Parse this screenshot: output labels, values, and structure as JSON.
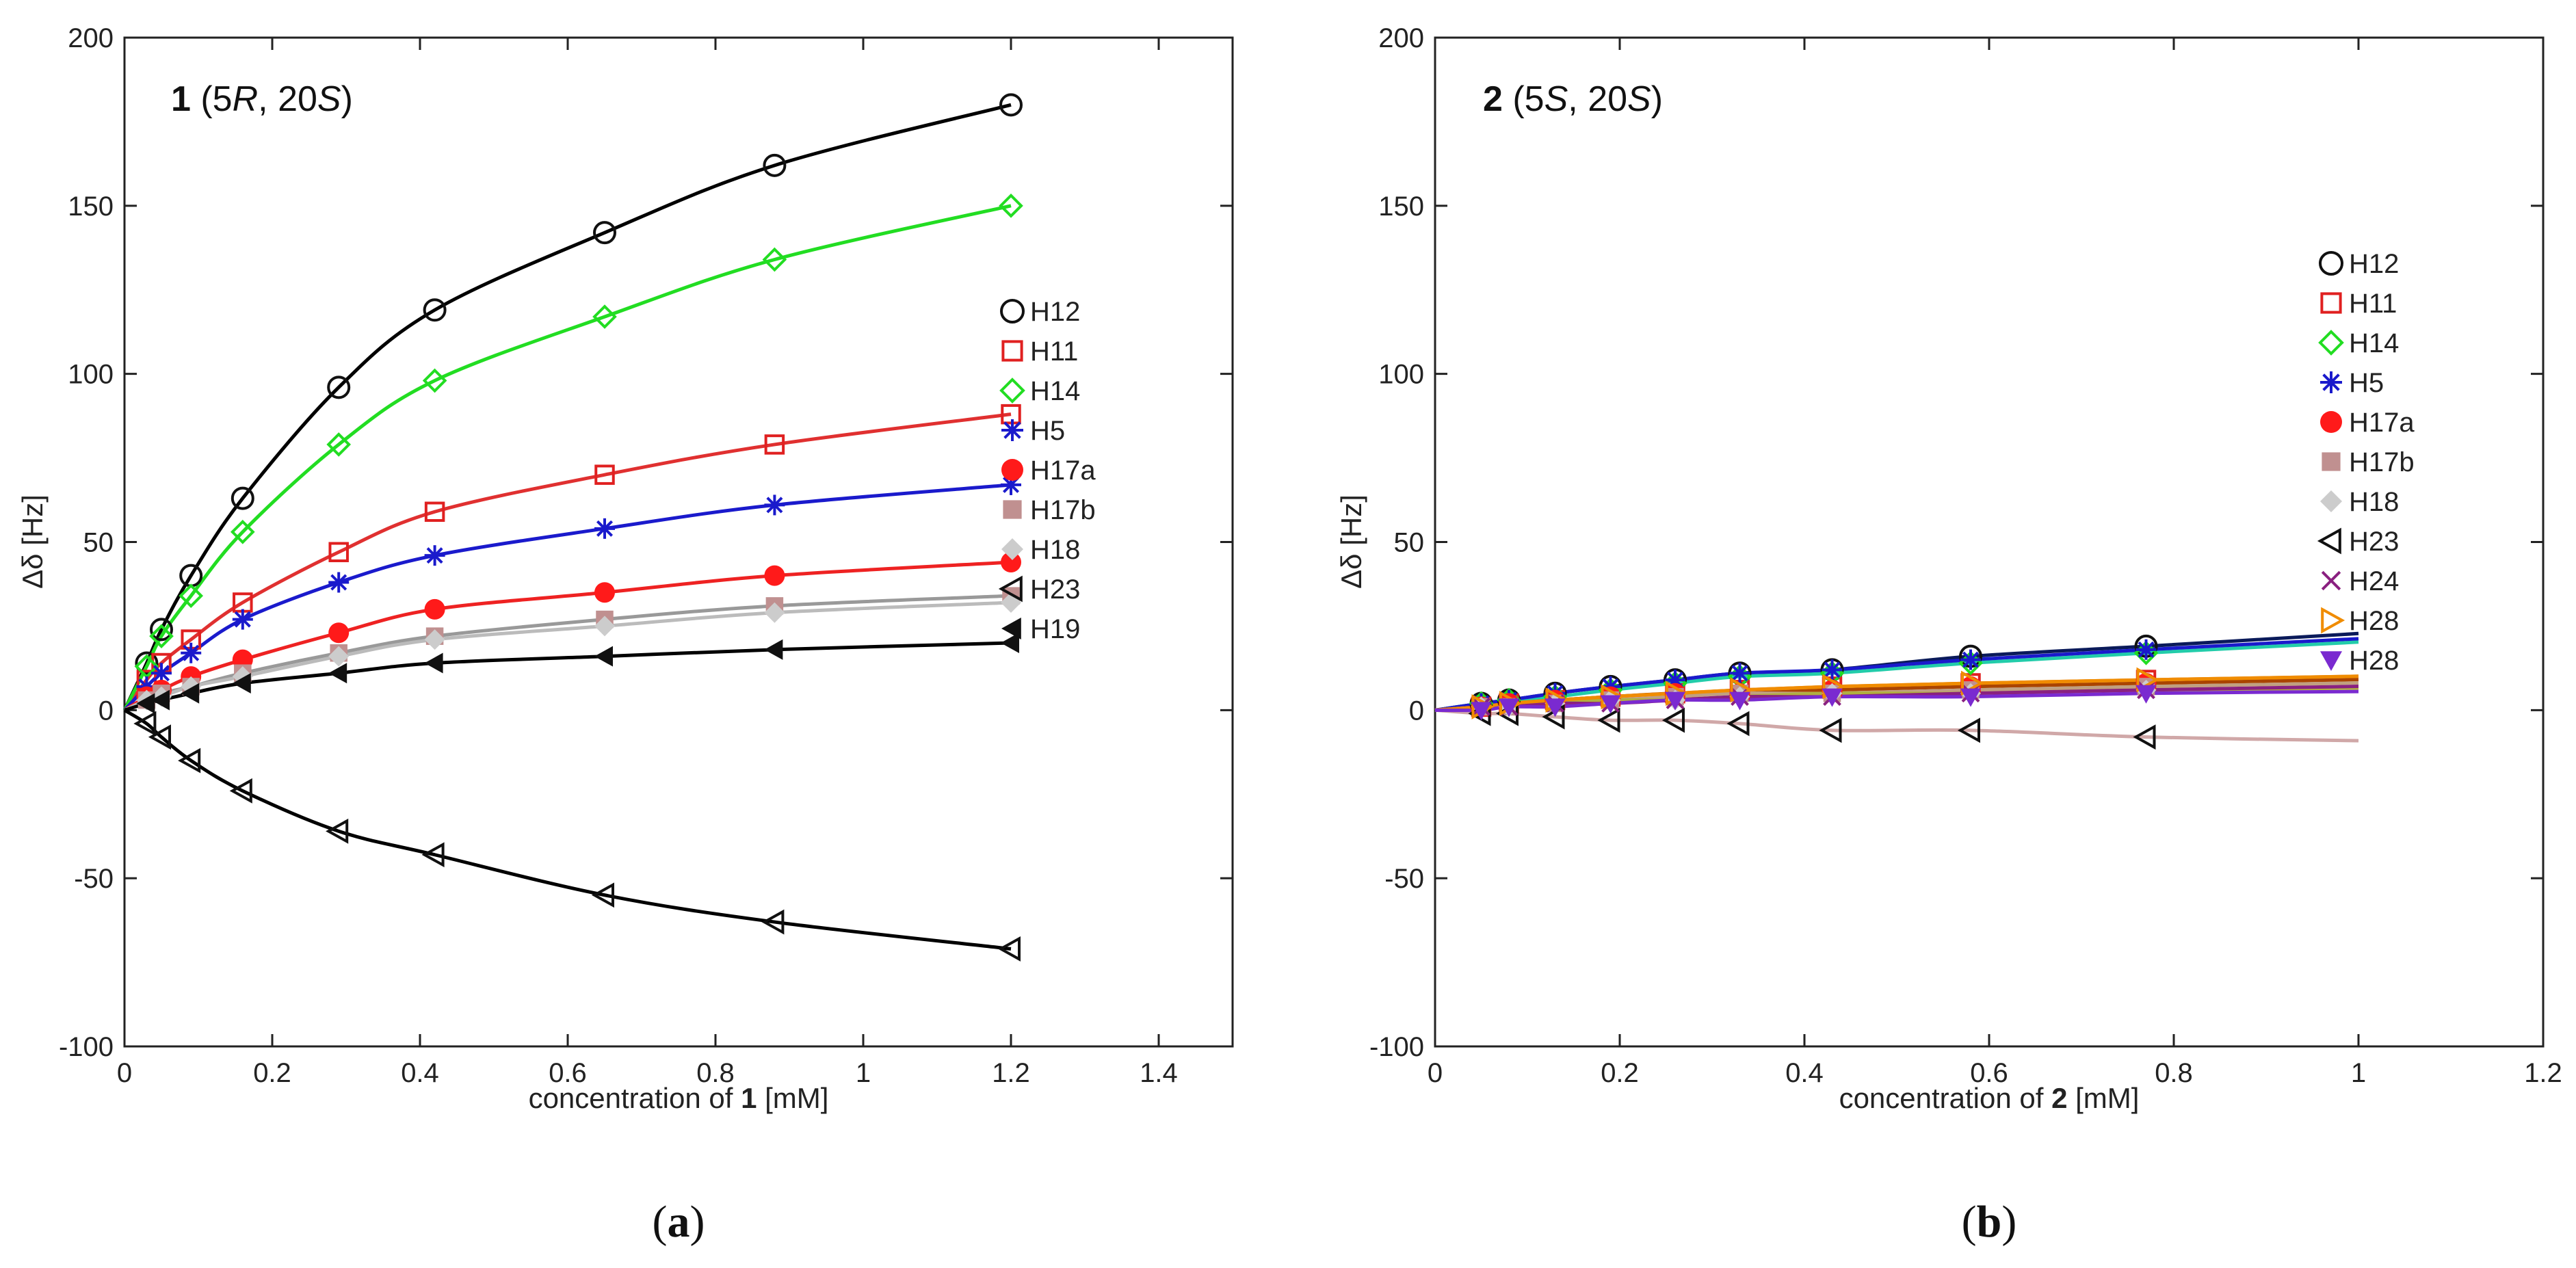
{
  "figure": {
    "caption_a": {
      "open": "(",
      "letter": "a",
      "close": ")"
    },
    "caption_b": {
      "open": "(",
      "letter": "b",
      "close": ")"
    }
  },
  "chart_data": [
    {
      "type": "scatter",
      "panel": "a",
      "title_parts": {
        "compound": "1",
        "open": " (5",
        "r1": "R",
        "mid": ", 20",
        "r2": "S",
        "close": ")"
      },
      "xlabel_parts": {
        "pre": "concentration of ",
        "compound": "1",
        "post": " [mM]"
      },
      "ylabel": "Δδ  [Hz]",
      "xlim": [
        0,
        1.5
      ],
      "ylim": [
        -100,
        200
      ],
      "xticks": [
        0,
        0.2,
        0.4,
        0.6,
        0.8,
        1,
        1.2,
        1.4
      ],
      "yticks": [
        -100,
        -50,
        0,
        50,
        100,
        150,
        200
      ],
      "xtick_labels": [
        "0",
        "0.2",
        "0.4",
        "0.6",
        "0.8",
        "1",
        "1.2",
        "1.4"
      ],
      "ytick_labels": [
        "-100",
        "-50",
        "0",
        "50",
        "100",
        "150",
        "200"
      ],
      "x": [
        0.03,
        0.05,
        0.09,
        0.16,
        0.29,
        0.42,
        0.65,
        0.88,
        1.2
      ],
      "legend": "right",
      "series": [
        {
          "name": "H12",
          "color": "#111111",
          "marker": "circle-open",
          "fit_color": "#000000",
          "values": [
            14,
            24,
            40,
            63,
            96,
            119,
            142,
            162,
            180
          ]
        },
        {
          "name": "H11",
          "color": "#e02020",
          "marker": "square-open",
          "fit_color": "#e03030",
          "values": [
            9,
            14,
            21,
            32,
            47,
            59,
            70,
            79,
            88
          ]
        },
        {
          "name": "H14",
          "color": "#22dd22",
          "marker": "diamond-open",
          "fit_color": "#22dd22",
          "values": [
            13,
            22,
            34,
            53,
            79,
            98,
            117,
            134,
            150
          ]
        },
        {
          "name": "H5",
          "color": "#1a1acc",
          "marker": "asterisk",
          "fit_color": "#1a1acc",
          "values": [
            7,
            11,
            17,
            27,
            38,
            46,
            54,
            61,
            67
          ]
        },
        {
          "name": "H17a",
          "color": "#ff1a1a",
          "marker": "circle-filled",
          "fit_color": "#ee2222",
          "values": [
            4,
            6,
            10,
            15,
            23,
            30,
            35,
            40,
            44
          ]
        },
        {
          "name": "H17b",
          "color": "#c09090",
          "marker": "square-filled",
          "fit_color": "#999999",
          "values": [
            3,
            5,
            7,
            11,
            17,
            22,
            27,
            31,
            34
          ]
        },
        {
          "name": "H18",
          "color": "#cccccc",
          "marker": "diamond-filled",
          "fit_color": "#bbbbbb",
          "values": [
            3,
            4,
            7,
            10,
            16,
            21,
            25,
            29,
            32
          ]
        },
        {
          "name": "H23",
          "color": "#111111",
          "marker": "triangle-left-open",
          "fit_color": "#000000",
          "values": [
            -4,
            -8,
            -15,
            -24,
            -36,
            -43,
            -55,
            -63,
            -71
          ]
        },
        {
          "name": "H19",
          "color": "#111111",
          "marker": "triangle-left-filled",
          "fit_color": "#000000",
          "values": [
            2,
            3,
            5,
            8,
            11,
            14,
            16,
            18,
            20
          ]
        }
      ]
    },
    {
      "type": "scatter",
      "panel": "b",
      "title_parts": {
        "compound": "2",
        "open": " (5",
        "r1": "S",
        "mid": ", 20",
        "r2": "S",
        "close": ")"
      },
      "xlabel_parts": {
        "pre": "concentration of ",
        "compound": "2",
        "post": " [mM]"
      },
      "ylabel": "Δδ  [Hz]",
      "xlim": [
        0,
        1.2
      ],
      "ylim": [
        -100,
        200
      ],
      "xticks": [
        0,
        0.2,
        0.4,
        0.6,
        0.8,
        1,
        1.2
      ],
      "yticks": [
        -100,
        -50,
        0,
        50,
        100,
        150,
        200
      ],
      "xtick_labels": [
        "0",
        "0.2",
        "0.4",
        "0.6",
        "0.8",
        "1",
        "1.2"
      ],
      "ytick_labels": [
        "-100",
        "-50",
        "0",
        "50",
        "100",
        "150",
        "200"
      ],
      "x": [
        0.05,
        0.08,
        0.13,
        0.19,
        0.26,
        0.33,
        0.43,
        0.58,
        0.77
      ],
      "fit_xmax": 1.0,
      "legend": "right",
      "series": [
        {
          "name": "H12",
          "color": "#111111",
          "marker": "circle-open",
          "fit_color": "#0a1a5a",
          "values": [
            2,
            3,
            5,
            7,
            9,
            11,
            12,
            16,
            19
          ]
        },
        {
          "name": "H11",
          "color": "#e02020",
          "marker": "square-open",
          "fit_color": "#e08040",
          "values": [
            1,
            2,
            3,
            4,
            5,
            6,
            7,
            8,
            9
          ]
        },
        {
          "name": "H14",
          "color": "#22dd22",
          "marker": "diamond-open",
          "fit_color": "#22ccaa",
          "values": [
            2,
            3,
            4,
            6,
            8,
            10,
            11,
            14,
            17
          ]
        },
        {
          "name": "H5",
          "color": "#1a1acc",
          "marker": "asterisk",
          "fit_color": "#1a1acc",
          "values": [
            2,
            3,
            5,
            7,
            9,
            11,
            12,
            15,
            18
          ]
        },
        {
          "name": "H17a",
          "color": "#ff1a1a",
          "marker": "circle-filled",
          "fit_color": "#aa4400",
          "values": [
            1,
            2,
            3,
            4,
            5,
            5,
            6,
            7,
            8
          ]
        },
        {
          "name": "H17b",
          "color": "#c09090",
          "marker": "square-filled",
          "fit_color": "#c0a080",
          "values": [
            1,
            1,
            2,
            3,
            4,
            5,
            5,
            6,
            7
          ]
        },
        {
          "name": "H18",
          "color": "#cccccc",
          "marker": "diamond-filled",
          "fit_color": "#b0b040",
          "values": [
            1,
            1,
            2,
            3,
            3,
            4,
            5,
            5,
            6
          ]
        },
        {
          "name": "H23",
          "color": "#111111",
          "marker": "triangle-left-open",
          "fit_color": "#d0a8a8",
          "values": [
            -1,
            -1,
            -2,
            -3,
            -3,
            -4,
            -6,
            -6,
            -8
          ]
        },
        {
          "name": "H24",
          "color": "#8a2080",
          "marker": "cross",
          "fit_color": "#8a2080",
          "values": [
            1,
            1,
            2,
            2,
            3,
            4,
            4,
            5,
            6
          ]
        },
        {
          "name": "H28",
          "color": "#f08c00",
          "marker": "triangle-right-open",
          "fit_color": "#f08c00",
          "values": [
            1,
            2,
            3,
            4,
            5,
            6,
            7,
            8,
            9
          ]
        },
        {
          "name": "H28",
          "color": "#7a2ad0",
          "marker": "triangle-down-filled",
          "fit_color": "#7a2ad0",
          "values": [
            0,
            1,
            1,
            2,
            3,
            3,
            4,
            4,
            5
          ]
        }
      ]
    }
  ]
}
